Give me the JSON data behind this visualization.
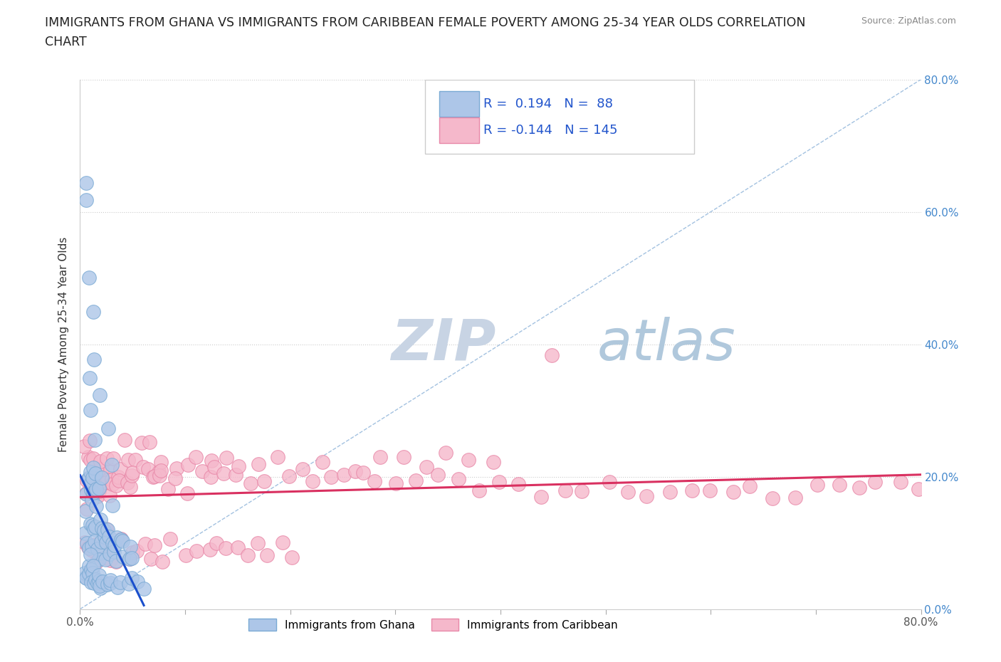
{
  "title": "IMMIGRANTS FROM GHANA VS IMMIGRANTS FROM CARIBBEAN FEMALE POVERTY AMONG 25-34 YEAR OLDS CORRELATION\nCHART",
  "source_text": "Source: ZipAtlas.com",
  "ylabel": "Female Poverty Among 25-34 Year Olds",
  "xlim": [
    0,
    0.8
  ],
  "ylim": [
    0,
    0.8
  ],
  "ghana_color": "#adc6e8",
  "caribbean_color": "#f5b8cb",
  "ghana_edge_color": "#7aaad4",
  "caribbean_edge_color": "#e888a8",
  "trend_ghana_color": "#1a4fcc",
  "trend_caribbean_color": "#d93060",
  "diag_color": "#6699cc",
  "R_ghana": 0.194,
  "N_ghana": 88,
  "R_caribbean": -0.144,
  "N_caribbean": 145,
  "watermark_zip": "ZIP",
  "watermark_atlas": "atlas",
  "watermark_color_zip": "#c8d8e8",
  "watermark_color_atlas": "#b8cce0",
  "legend_labels": [
    "Immigrants from Ghana",
    "Immigrants from Caribbean"
  ],
  "ghana_x": [
    0.005,
    0.005,
    0.007,
    0.008,
    0.008,
    0.009,
    0.01,
    0.01,
    0.01,
    0.01,
    0.011,
    0.011,
    0.012,
    0.012,
    0.013,
    0.013,
    0.014,
    0.014,
    0.015,
    0.015,
    0.016,
    0.016,
    0.017,
    0.017,
    0.018,
    0.018,
    0.019,
    0.019,
    0.02,
    0.02,
    0.021,
    0.022,
    0.023,
    0.024,
    0.025,
    0.026,
    0.027,
    0.028,
    0.03,
    0.03,
    0.032,
    0.033,
    0.035,
    0.036,
    0.038,
    0.04,
    0.042,
    0.045,
    0.048,
    0.05,
    0.005,
    0.006,
    0.007,
    0.008,
    0.009,
    0.01,
    0.01,
    0.011,
    0.012,
    0.013,
    0.014,
    0.015,
    0.016,
    0.017,
    0.018,
    0.019,
    0.02,
    0.022,
    0.025,
    0.028,
    0.03,
    0.035,
    0.04,
    0.045,
    0.05,
    0.055,
    0.06,
    0.005,
    0.007,
    0.009,
    0.011,
    0.013,
    0.02,
    0.025,
    0.03,
    0.01,
    0.012,
    0.015
  ],
  "ghana_y": [
    0.12,
    0.15,
    0.18,
    0.1,
    0.2,
    0.08,
    0.16,
    0.18,
    0.2,
    0.22,
    0.14,
    0.19,
    0.12,
    0.17,
    0.1,
    0.2,
    0.12,
    0.22,
    0.1,
    0.18,
    0.12,
    0.2,
    0.08,
    0.16,
    0.1,
    0.18,
    0.08,
    0.14,
    0.1,
    0.2,
    0.12,
    0.1,
    0.12,
    0.08,
    0.1,
    0.12,
    0.1,
    0.08,
    0.1,
    0.16,
    0.08,
    0.1,
    0.08,
    0.12,
    0.1,
    0.08,
    0.1,
    0.08,
    0.1,
    0.08,
    0.05,
    0.06,
    0.04,
    0.06,
    0.04,
    0.06,
    0.08,
    0.05,
    0.04,
    0.06,
    0.04,
    0.05,
    0.04,
    0.04,
    0.05,
    0.04,
    0.04,
    0.04,
    0.04,
    0.04,
    0.04,
    0.04,
    0.04,
    0.04,
    0.05,
    0.04,
    0.04,
    0.64,
    0.62,
    0.5,
    0.45,
    0.38,
    0.32,
    0.28,
    0.22,
    0.35,
    0.3,
    0.25
  ],
  "carib_x": [
    0.005,
    0.005,
    0.006,
    0.007,
    0.008,
    0.008,
    0.009,
    0.01,
    0.01,
    0.011,
    0.012,
    0.013,
    0.014,
    0.015,
    0.016,
    0.017,
    0.018,
    0.019,
    0.02,
    0.021,
    0.022,
    0.023,
    0.024,
    0.025,
    0.026,
    0.027,
    0.028,
    0.029,
    0.03,
    0.032,
    0.034,
    0.036,
    0.038,
    0.04,
    0.042,
    0.044,
    0.046,
    0.048,
    0.05,
    0.052,
    0.055,
    0.058,
    0.06,
    0.062,
    0.065,
    0.068,
    0.07,
    0.072,
    0.075,
    0.078,
    0.08,
    0.085,
    0.09,
    0.095,
    0.1,
    0.105,
    0.11,
    0.115,
    0.12,
    0.125,
    0.13,
    0.135,
    0.14,
    0.145,
    0.15,
    0.16,
    0.17,
    0.18,
    0.19,
    0.2,
    0.21,
    0.22,
    0.23,
    0.24,
    0.25,
    0.26,
    0.27,
    0.28,
    0.29,
    0.3,
    0.31,
    0.32,
    0.33,
    0.34,
    0.35,
    0.36,
    0.37,
    0.38,
    0.39,
    0.4,
    0.42,
    0.44,
    0.46,
    0.48,
    0.5,
    0.52,
    0.54,
    0.56,
    0.58,
    0.6,
    0.006,
    0.008,
    0.01,
    0.012,
    0.014,
    0.016,
    0.018,
    0.02,
    0.022,
    0.024,
    0.026,
    0.028,
    0.03,
    0.035,
    0.04,
    0.045,
    0.05,
    0.055,
    0.06,
    0.065,
    0.07,
    0.08,
    0.09,
    0.1,
    0.11,
    0.12,
    0.13,
    0.14,
    0.15,
    0.16,
    0.17,
    0.18,
    0.19,
    0.2,
    0.62,
    0.64,
    0.66,
    0.68,
    0.7,
    0.72,
    0.74,
    0.76,
    0.78,
    0.8,
    0.45
  ],
  "carib_y": [
    0.18,
    0.22,
    0.2,
    0.25,
    0.15,
    0.22,
    0.18,
    0.2,
    0.25,
    0.18,
    0.2,
    0.22,
    0.18,
    0.2,
    0.18,
    0.22,
    0.18,
    0.2,
    0.2,
    0.18,
    0.22,
    0.18,
    0.2,
    0.2,
    0.18,
    0.22,
    0.18,
    0.2,
    0.22,
    0.2,
    0.18,
    0.2,
    0.22,
    0.2,
    0.25,
    0.2,
    0.22,
    0.18,
    0.2,
    0.22,
    0.2,
    0.25,
    0.22,
    0.2,
    0.25,
    0.2,
    0.22,
    0.2,
    0.22,
    0.2,
    0.22,
    0.2,
    0.22,
    0.2,
    0.22,
    0.2,
    0.22,
    0.2,
    0.22,
    0.2,
    0.22,
    0.2,
    0.22,
    0.2,
    0.22,
    0.2,
    0.22,
    0.2,
    0.22,
    0.2,
    0.22,
    0.2,
    0.22,
    0.2,
    0.22,
    0.2,
    0.22,
    0.2,
    0.22,
    0.2,
    0.22,
    0.2,
    0.22,
    0.2,
    0.22,
    0.2,
    0.22,
    0.2,
    0.22,
    0.2,
    0.18,
    0.18,
    0.18,
    0.18,
    0.18,
    0.18,
    0.18,
    0.18,
    0.18,
    0.18,
    0.1,
    0.08,
    0.1,
    0.08,
    0.1,
    0.08,
    0.1,
    0.08,
    0.1,
    0.08,
    0.1,
    0.08,
    0.1,
    0.08,
    0.1,
    0.08,
    0.1,
    0.08,
    0.1,
    0.08,
    0.1,
    0.08,
    0.1,
    0.08,
    0.1,
    0.08,
    0.1,
    0.08,
    0.1,
    0.08,
    0.1,
    0.08,
    0.1,
    0.08,
    0.18,
    0.18,
    0.18,
    0.18,
    0.18,
    0.18,
    0.18,
    0.18,
    0.18,
    0.18,
    0.38
  ]
}
